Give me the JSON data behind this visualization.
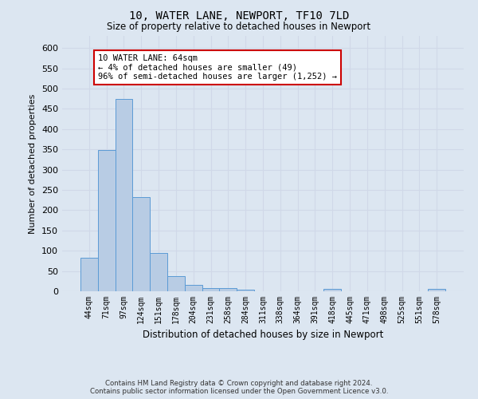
{
  "title1": "10, WATER LANE, NEWPORT, TF10 7LD",
  "title2": "Size of property relative to detached houses in Newport",
  "xlabel": "Distribution of detached houses by size in Newport",
  "ylabel": "Number of detached properties",
  "categories": [
    "44sqm",
    "71sqm",
    "97sqm",
    "124sqm",
    "151sqm",
    "178sqm",
    "204sqm",
    "231sqm",
    "258sqm",
    "284sqm",
    "311sqm",
    "338sqm",
    "364sqm",
    "391sqm",
    "418sqm",
    "445sqm",
    "471sqm",
    "498sqm",
    "525sqm",
    "551sqm",
    "578sqm"
  ],
  "values": [
    82,
    348,
    475,
    233,
    95,
    37,
    16,
    8,
    8,
    4,
    0,
    0,
    0,
    0,
    5,
    0,
    0,
    0,
    0,
    0,
    5
  ],
  "bar_color": "#b8cce4",
  "bar_edge_color": "#5b9bd5",
  "annotation_box_text": "10 WATER LANE: 64sqm\n← 4% of detached houses are smaller (49)\n96% of semi-detached houses are larger (1,252) →",
  "annotation_box_color": "#ffffff",
  "annotation_box_edge_color": "#cc0000",
  "grid_color": "#d0d8e8",
  "background_color": "#dce6f1",
  "plot_bg_color": "#dce6f1",
  "yticks": [
    0,
    50,
    100,
    150,
    200,
    250,
    300,
    350,
    400,
    450,
    500,
    550,
    600
  ],
  "ylim": [
    0,
    630
  ],
  "footer": "Contains HM Land Registry data © Crown copyright and database right 2024.\nContains public sector information licensed under the Open Government Licence v3.0."
}
